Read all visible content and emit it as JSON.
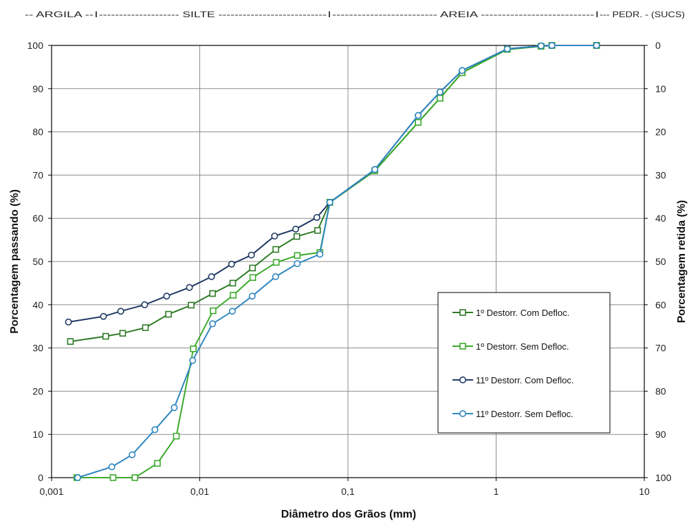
{
  "chart_data": {
    "type": "scatter",
    "x_scale": "log",
    "xlabel": "Diâmetro dos Grãos (mm)",
    "ylabel": "Porcentagem passando (%)",
    "y2label": "Porcentagem retida (%)",
    "xlim": [
      0.001,
      10
    ],
    "ylim": [
      0,
      100
    ],
    "y2lim": [
      100,
      0
    ],
    "x_tick_values": [
      0.001,
      0.01,
      0.1,
      1,
      10
    ],
    "x_ticks": [
      "0,001",
      "0,01",
      "0,1",
      "1",
      "10"
    ],
    "y_ticks": [
      "0",
      "10",
      "20",
      "30",
      "40",
      "50",
      "60",
      "70",
      "80",
      "90",
      "100"
    ],
    "y2_ticks": [
      "100",
      "90",
      "80",
      "70",
      "60",
      "50",
      "40",
      "30",
      "20",
      "10",
      "0"
    ],
    "grid": true,
    "legend_position": "right",
    "soil_scale": [
      {
        "text": "-- ARGILA --",
        "from": 0.001,
        "to": 0.002
      },
      {
        "text": "I",
        "at": 0.002
      },
      {
        "text": "-------------------- SILTE ---------------------------",
        "from": 0.002,
        "to": 0.075
      },
      {
        "text": "I",
        "at": 0.075
      },
      {
        "text": "------------------------- AREIA ---------------------------",
        "from": 0.075,
        "to": 4.8
      },
      {
        "text": "I",
        "at": 4.8
      },
      {
        "text": "--- PEDR. - (SUCS)",
        "from": 4.8,
        "to": 10
      }
    ],
    "series": [
      {
        "name": "1º Destorr. Com Defloc.",
        "color": "#2d7a26",
        "marker": "square",
        "x": [
          0.00134,
          0.00232,
          0.00302,
          0.0043,
          0.00615,
          0.00875,
          0.0122,
          0.0167,
          0.0227,
          0.0326,
          0.0452,
          0.0624,
          0.0755,
          0.152,
          0.298,
          0.418,
          0.59,
          1.19,
          2.01,
          2.38,
          4.76
        ],
        "y": [
          31.5,
          32.7,
          33.4,
          34.7,
          37.8,
          39.9,
          42.6,
          45.0,
          48.5,
          52.8,
          55.8,
          57.2,
          63.7,
          71.0,
          82.2,
          87.8,
          93.7,
          99.1,
          99.8,
          100.0,
          100.0
        ]
      },
      {
        "name": "1º Destorr. Sem Defloc.",
        "color": "#3aaa2a",
        "marker": "square",
        "x": [
          0.00148,
          0.0026,
          0.00365,
          0.00518,
          0.00695,
          0.00905,
          0.0123,
          0.0168,
          0.0228,
          0.0328,
          0.0455,
          0.0647,
          0.0755,
          0.152,
          0.298,
          0.418,
          0.59,
          1.19,
          2.01,
          2.38,
          4.76
        ],
        "y": [
          0.0,
          0.0,
          0.0,
          3.3,
          9.6,
          29.8,
          38.6,
          42.2,
          46.3,
          49.8,
          51.4,
          52.1,
          63.7,
          71.0,
          82.2,
          87.8,
          93.7,
          99.1,
          99.8,
          100.0,
          100.0
        ]
      },
      {
        "name": "11º Destorr. Com Defloc.",
        "color": "#1f3864",
        "marker": "circle",
        "x": [
          0.0013,
          0.00224,
          0.00293,
          0.00425,
          0.00598,
          0.00852,
          0.012,
          0.0164,
          0.0223,
          0.032,
          0.0444,
          0.0617,
          0.0755,
          0.152,
          0.298,
          0.418,
          0.59,
          1.19,
          2.01,
          2.38,
          4.76
        ],
        "y": [
          36.0,
          37.3,
          38.5,
          40.0,
          42.0,
          44.0,
          46.5,
          49.4,
          51.5,
          55.9,
          57.5,
          60.2,
          63.7,
          71.3,
          83.8,
          89.2,
          94.2,
          99.2,
          99.9,
          100.0,
          100.0
        ]
      },
      {
        "name": "11º Destorr. Sem Defloc.",
        "color": "#2e86c1",
        "marker": "circle",
        "x": [
          0.0015,
          0.00255,
          0.0035,
          0.00498,
          0.00673,
          0.00895,
          0.0122,
          0.0166,
          0.0226,
          0.0325,
          0.0455,
          0.0647,
          0.0755,
          0.152,
          0.298,
          0.418,
          0.59,
          1.19,
          2.01,
          2.38,
          4.76
        ],
        "y": [
          0.0,
          2.5,
          5.3,
          11.1,
          16.2,
          27.1,
          35.6,
          38.5,
          42.0,
          46.5,
          49.5,
          51.7,
          63.7,
          71.3,
          83.8,
          89.2,
          94.2,
          99.2,
          99.9,
          100.0,
          100.0
        ]
      }
    ]
  }
}
